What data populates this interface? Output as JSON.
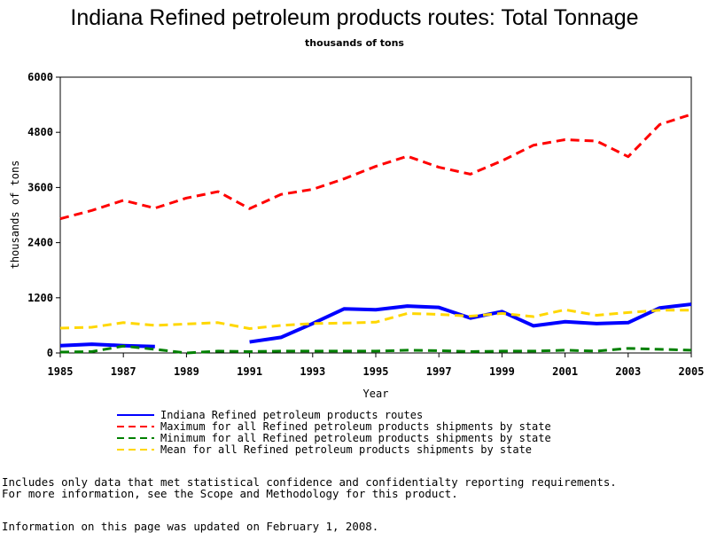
{
  "chart_data": {
    "type": "line",
    "title": "Indiana Refined petroleum products routes: Total Tonnage",
    "subtitle": "thousands of tons",
    "xlabel": "Year",
    "ylabel": "thousands of tons",
    "xlim": [
      1985,
      2005
    ],
    "ylim": [
      0,
      6000
    ],
    "x_ticks": [
      "1985",
      "1987",
      "1989",
      "1991",
      "1993",
      "1995",
      "1997",
      "1999",
      "2001",
      "2003",
      "2005"
    ],
    "y_ticks": [
      "0",
      "1200",
      "2400",
      "3600",
      "4800",
      "6000"
    ],
    "grid": false,
    "legend_position": "bottom",
    "x": [
      1985,
      1986,
      1987,
      1988,
      1989,
      1990,
      1991,
      1992,
      1993,
      1994,
      1995,
      1996,
      1997,
      1998,
      1999,
      2000,
      2001,
      2002,
      2003,
      2004,
      2005
    ],
    "series": [
      {
        "name": "Indiana Refined petroleum products routes",
        "color": "#0000ff",
        "style": "solid",
        "segments": [
          [
            [
              1985,
              160
            ],
            [
              1986,
              190
            ],
            [
              1987,
              160
            ],
            [
              1988,
              140
            ]
          ],
          [
            [
              1991,
              240
            ],
            [
              1992,
              340
            ],
            [
              1993,
              640
            ],
            [
              1994,
              960
            ],
            [
              1995,
              940
            ],
            [
              1996,
              1020
            ],
            [
              1997,
              990
            ],
            [
              1998,
              760
            ],
            [
              1999,
              900
            ],
            [
              2000,
              590
            ],
            [
              2001,
              680
            ],
            [
              2002,
              640
            ],
            [
              2003,
              660
            ],
            [
              2004,
              980
            ],
            [
              2005,
              1060
            ]
          ]
        ]
      },
      {
        "name": "Maximum for all Refined petroleum products shipments by state",
        "color": "#ff0000",
        "style": "dashed",
        "segments": [
          [
            [
              1985,
              2920
            ],
            [
              1986,
              3100
            ],
            [
              1987,
              3320
            ],
            [
              1988,
              3150
            ],
            [
              1989,
              3370
            ],
            [
              1990,
              3510
            ],
            [
              1991,
              3140
            ],
            [
              1992,
              3450
            ],
            [
              1993,
              3560
            ],
            [
              1994,
              3790
            ],
            [
              1995,
              4060
            ],
            [
              1996,
              4280
            ],
            [
              1997,
              4040
            ],
            [
              1998,
              3890
            ],
            [
              1999,
              4180
            ],
            [
              2000,
              4520
            ],
            [
              2001,
              4640
            ],
            [
              2002,
              4610
            ],
            [
              2003,
              4270
            ],
            [
              2004,
              4970
            ],
            [
              2005,
              5190
            ]
          ]
        ]
      },
      {
        "name": "Minimum for all Refined petroleum products shipments by state",
        "color": "#008000",
        "style": "dashed",
        "segments": [
          [
            [
              1985,
              20
            ],
            [
              1986,
              30
            ],
            [
              1987,
              150
            ],
            [
              1988,
              80
            ],
            [
              1989,
              0
            ],
            [
              1990,
              40
            ],
            [
              1991,
              30
            ],
            [
              1992,
              40
            ],
            [
              1993,
              40
            ],
            [
              1994,
              40
            ],
            [
              1995,
              40
            ],
            [
              1996,
              60
            ],
            [
              1997,
              50
            ],
            [
              1998,
              30
            ],
            [
              1999,
              40
            ],
            [
              2000,
              40
            ],
            [
              2001,
              60
            ],
            [
              2002,
              40
            ],
            [
              2003,
              100
            ],
            [
              2004,
              80
            ],
            [
              2005,
              60
            ]
          ]
        ]
      },
      {
        "name": "Mean for all Refined petroleum products shipments by state",
        "color": "#ffd700",
        "style": "dashed",
        "segments": [
          [
            [
              1985,
              540
            ],
            [
              1986,
              560
            ],
            [
              1987,
              660
            ],
            [
              1988,
              600
            ],
            [
              1989,
              630
            ],
            [
              1990,
              660
            ],
            [
              1991,
              530
            ],
            [
              1992,
              600
            ],
            [
              1993,
              640
            ],
            [
              1994,
              650
            ],
            [
              1995,
              670
            ],
            [
              1996,
              860
            ],
            [
              1997,
              840
            ],
            [
              1998,
              800
            ],
            [
              1999,
              860
            ],
            [
              2000,
              790
            ],
            [
              2001,
              940
            ],
            [
              2002,
              820
            ],
            [
              2003,
              880
            ],
            [
              2004,
              930
            ],
            [
              2005,
              930
            ]
          ]
        ]
      }
    ]
  },
  "notes": {
    "line1": "Includes only data that met statistical confidence and confidentialty reporting requirements.",
    "line2": "For more information, see the Scope and Methodology for this product.",
    "updated": "Information on this page was updated on February 1, 2008."
  }
}
